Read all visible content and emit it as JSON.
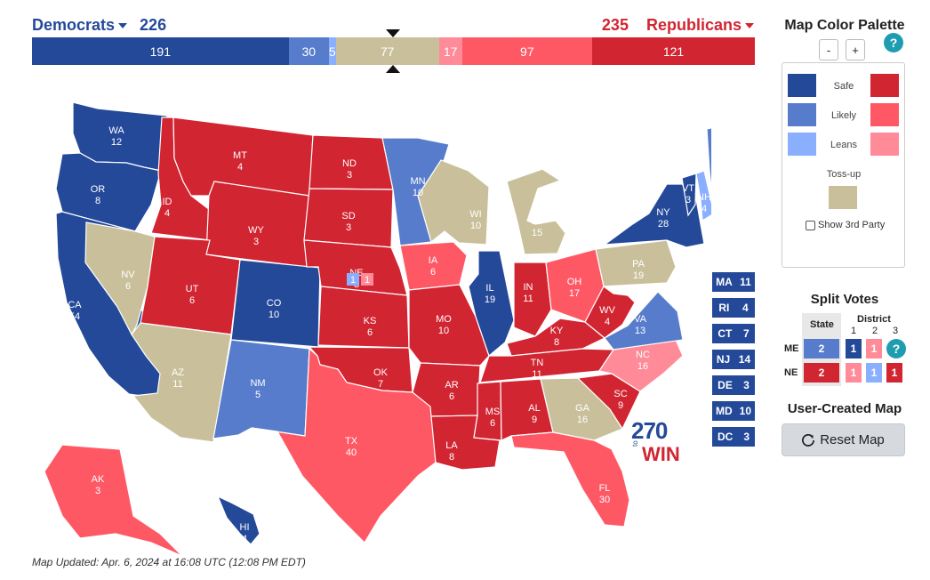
{
  "header": {
    "dem_label": "Democrats",
    "dem_total": "226",
    "rep_total": "235",
    "rep_label": "Republicans"
  },
  "colors": {
    "safe_d": "#244999",
    "likely_d": "#577CCC",
    "lean_d": "#8AAFFF",
    "tossup": "#C9C09B",
    "lean_r": "#FF8B98",
    "likely_r": "#FF5865",
    "safe_r": "#D22532"
  },
  "ev_bar": [
    {
      "key": "safe_d",
      "value": 191,
      "label": "191"
    },
    {
      "key": "likely_d",
      "value": 30,
      "label": "30"
    },
    {
      "key": "lean_d",
      "value": 5,
      "label": "5"
    },
    {
      "key": "tossup",
      "value": 77,
      "label": "77"
    },
    {
      "key": "lean_r",
      "value": 17,
      "label": "17"
    },
    {
      "key": "likely_r",
      "value": 97,
      "label": "97"
    },
    {
      "key": "safe_r",
      "value": 121,
      "label": "121"
    }
  ],
  "states": [
    {
      "abbr": "WA",
      "ev": "12",
      "rating": "safe_d"
    },
    {
      "abbr": "OR",
      "ev": "8",
      "rating": "safe_d"
    },
    {
      "abbr": "CA",
      "ev": "54",
      "rating": "safe_d"
    },
    {
      "abbr": "NV",
      "ev": "6",
      "rating": "tossup"
    },
    {
      "abbr": "ID",
      "ev": "4",
      "rating": "safe_r"
    },
    {
      "abbr": "MT",
      "ev": "4",
      "rating": "safe_r"
    },
    {
      "abbr": "WY",
      "ev": "3",
      "rating": "safe_r"
    },
    {
      "abbr": "UT",
      "ev": "6",
      "rating": "safe_r"
    },
    {
      "abbr": "AZ",
      "ev": "11",
      "rating": "tossup"
    },
    {
      "abbr": "CO",
      "ev": "10",
      "rating": "safe_d"
    },
    {
      "abbr": "NM",
      "ev": "5",
      "rating": "likely_d"
    },
    {
      "abbr": "ND",
      "ev": "3",
      "rating": "safe_r"
    },
    {
      "abbr": "SD",
      "ev": "3",
      "rating": "safe_r"
    },
    {
      "abbr": "NE",
      "ev": "3",
      "rating": "safe_r"
    },
    {
      "abbr": "KS",
      "ev": "6",
      "rating": "safe_r"
    },
    {
      "abbr": "OK",
      "ev": "7",
      "rating": "safe_r"
    },
    {
      "abbr": "TX",
      "ev": "40",
      "rating": "likely_r"
    },
    {
      "abbr": "MN",
      "ev": "10",
      "rating": "likely_d"
    },
    {
      "abbr": "IA",
      "ev": "6",
      "rating": "likely_r"
    },
    {
      "abbr": "MO",
      "ev": "10",
      "rating": "safe_r"
    },
    {
      "abbr": "AR",
      "ev": "6",
      "rating": "safe_r"
    },
    {
      "abbr": "LA",
      "ev": "8",
      "rating": "safe_r"
    },
    {
      "abbr": "WI",
      "ev": "10",
      "rating": "tossup"
    },
    {
      "abbr": "IL",
      "ev": "19",
      "rating": "safe_d"
    },
    {
      "abbr": "MI",
      "ev": "15",
      "rating": "tossup"
    },
    {
      "abbr": "IN",
      "ev": "11",
      "rating": "safe_r"
    },
    {
      "abbr": "OH",
      "ev": "17",
      "rating": "likely_r"
    },
    {
      "abbr": "KY",
      "ev": "8",
      "rating": "safe_r"
    },
    {
      "abbr": "TN",
      "ev": "11",
      "rating": "safe_r"
    },
    {
      "abbr": "MS",
      "ev": "6",
      "rating": "safe_r"
    },
    {
      "abbr": "AL",
      "ev": "9",
      "rating": "safe_r"
    },
    {
      "abbr": "GA",
      "ev": "16",
      "rating": "tossup"
    },
    {
      "abbr": "FL",
      "ev": "30",
      "rating": "likely_r"
    },
    {
      "abbr": "SC",
      "ev": "9",
      "rating": "safe_r"
    },
    {
      "abbr": "NC",
      "ev": "16",
      "rating": "lean_r"
    },
    {
      "abbr": "VA",
      "ev": "13",
      "rating": "likely_d"
    },
    {
      "abbr": "WV",
      "ev": "4",
      "rating": "safe_r"
    },
    {
      "abbr": "PA",
      "ev": "19",
      "rating": "tossup"
    },
    {
      "abbr": "NY",
      "ev": "28",
      "rating": "safe_d"
    },
    {
      "abbr": "VT",
      "ev": "3",
      "rating": "safe_d"
    },
    {
      "abbr": "NH",
      "ev": "4",
      "rating": "lean_d"
    },
    {
      "abbr": "ME",
      "ev": "2",
      "rating": "likely_d"
    },
    {
      "abbr": "AK",
      "ev": "3",
      "rating": "likely_r"
    },
    {
      "abbr": "HI",
      "ev": "4",
      "rating": "safe_d"
    }
  ],
  "map_district_labels": {
    "ne_d1": "1",
    "ne_d2": "1",
    "me_d1": "1",
    "me_d2": "1"
  },
  "small_states": [
    {
      "abbr": "MA",
      "ev": "11"
    },
    {
      "abbr": "RI",
      "ev": "4"
    },
    {
      "abbr": "CT",
      "ev": "7"
    },
    {
      "abbr": "NJ",
      "ev": "14"
    },
    {
      "abbr": "DE",
      "ev": "3"
    },
    {
      "abbr": "MD",
      "ev": "10"
    },
    {
      "abbr": "DC",
      "ev": "3"
    }
  ],
  "logo": {
    "number": "270",
    "to": "to",
    "win": "WIN"
  },
  "updated": "Map Updated: Apr. 6, 2024 at 16:08 UTC (12:08 PM EDT)",
  "palette": {
    "title": "Map Color Palette",
    "zoom_minus": "-",
    "zoom_plus": "+",
    "help": "?",
    "safe": "Safe",
    "likely": "Likely",
    "leans": "Leans",
    "tossup": "Toss-up",
    "third_party": "Show 3rd Party"
  },
  "split_votes": {
    "title": "Split Votes",
    "state_hdr": "State",
    "district_hdr": "District",
    "d1": "1",
    "d2": "2",
    "d3": "3",
    "help": "?",
    "me": {
      "label": "ME",
      "state": "2",
      "d1": "1",
      "d2": "1"
    },
    "ne": {
      "label": "NE",
      "state": "2",
      "d1": "1",
      "d2": "1",
      "d3": "1"
    }
  },
  "user_map": {
    "title": "User-Created Map",
    "reset": "Reset Map"
  }
}
